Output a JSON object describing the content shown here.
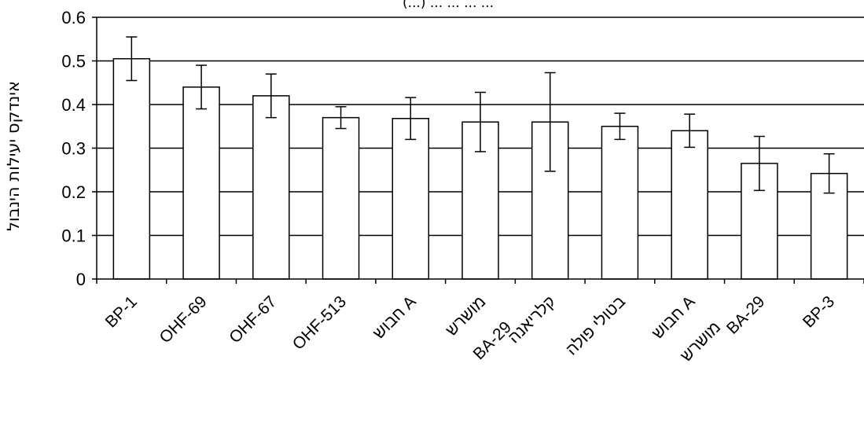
{
  "chart_data": {
    "type": "bar",
    "title": "(...) ... ... ... ...",
    "ylabel": "אינדקס יעילות הינבול",
    "xlabel": "",
    "ylim": [
      0,
      0.6
    ],
    "yticks": [
      "0",
      "0.1",
      "0.2",
      "0.3",
      "0.4",
      "0.5",
      "0.6"
    ],
    "grid": true,
    "categories": [
      {
        "line1": "BP-1",
        "line2": ""
      },
      {
        "line1": "OHF-69",
        "line2": ""
      },
      {
        "line1": "OHF-67",
        "line2": ""
      },
      {
        "line1": "OHF-513",
        "line2": ""
      },
      {
        "line1": "חבוש A",
        "line2": ""
      },
      {
        "line1": "מושרש",
        "line2": "BA-29"
      },
      {
        "line1": "קלריאנה",
        "line2": ""
      },
      {
        "line1": "בטולי פולה",
        "line2": ""
      },
      {
        "line1": "חבוש A",
        "line2": "מושרש"
      },
      {
        "line1": "BA-29",
        "line2": ""
      },
      {
        "line1": "BP-3",
        "line2": ""
      }
    ],
    "values": [
      0.505,
      0.44,
      0.42,
      0.37,
      0.368,
      0.36,
      0.36,
      0.35,
      0.34,
      0.265,
      0.242
    ],
    "errors": [
      0.05,
      0.05,
      0.05,
      0.025,
      0.048,
      0.068,
      0.113,
      0.03,
      0.038,
      0.062,
      0.045
    ]
  }
}
